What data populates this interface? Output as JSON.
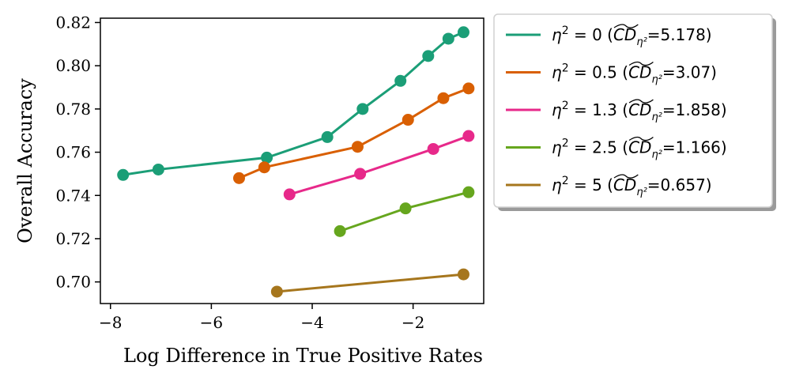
{
  "chart_data": {
    "type": "line",
    "title": "",
    "xlabel": "Log Difference in True Positive Rates",
    "ylabel": "Overall Accuracy",
    "xlim": [
      -8.2,
      -0.6
    ],
    "ylim": [
      0.69,
      0.822
    ],
    "xticks": [
      -8,
      -6,
      -4,
      -2
    ],
    "xtick_labels": [
      "−8",
      "−6",
      "−4",
      "−2"
    ],
    "yticks": [
      0.7,
      0.72,
      0.74,
      0.76,
      0.78,
      0.8,
      0.82
    ],
    "ytick_labels": [
      "0.70",
      "0.72",
      "0.74",
      "0.76",
      "0.78",
      "0.80",
      "0.82"
    ],
    "grid": false,
    "legend_position": "outside-upper-right",
    "series": [
      {
        "name": "η² = 0 (CD̃ η²=5.178)",
        "eta2": "0",
        "cd": "5.178",
        "color": "#1b9e77",
        "x": [
          -7.75,
          -7.05,
          -4.9,
          -3.7,
          -3.0,
          -2.25,
          -1.7,
          -1.3,
          -1.0
        ],
        "y": [
          0.7495,
          0.752,
          0.7575,
          0.767,
          0.78,
          0.793,
          0.8045,
          0.8125,
          0.8155
        ]
      },
      {
        "name": "η² = 0.5 (CD̃ η²=3.07)",
        "eta2": "0.5",
        "cd": "3.07",
        "color": "#d95f02",
        "x": [
          -5.45,
          -4.95,
          -3.1,
          -2.1,
          -1.4,
          -0.9
        ],
        "y": [
          0.748,
          0.753,
          0.7625,
          0.775,
          0.785,
          0.7895
        ]
      },
      {
        "name": "η² = 1.3 (CD̃ η²=1.858)",
        "eta2": "1.3",
        "cd": "1.858",
        "color": "#e7298a",
        "x": [
          -4.45,
          -3.05,
          -1.6,
          -0.9
        ],
        "y": [
          0.7405,
          0.75,
          0.7615,
          0.7675
        ]
      },
      {
        "name": "η² = 2.5 (CD̃ η²=1.166)",
        "eta2": "2.5",
        "cd": "1.166",
        "color": "#66a61e",
        "x": [
          -3.45,
          -2.15,
          -0.9
        ],
        "y": [
          0.7235,
          0.734,
          0.7415
        ]
      },
      {
        "name": "η² = 5 (CD̃ η²=0.657)",
        "eta2": "5",
        "cd": "0.657",
        "color": "#a6761d",
        "x": [
          -4.7,
          -1.0
        ],
        "y": [
          0.6955,
          0.7035
        ]
      }
    ]
  }
}
